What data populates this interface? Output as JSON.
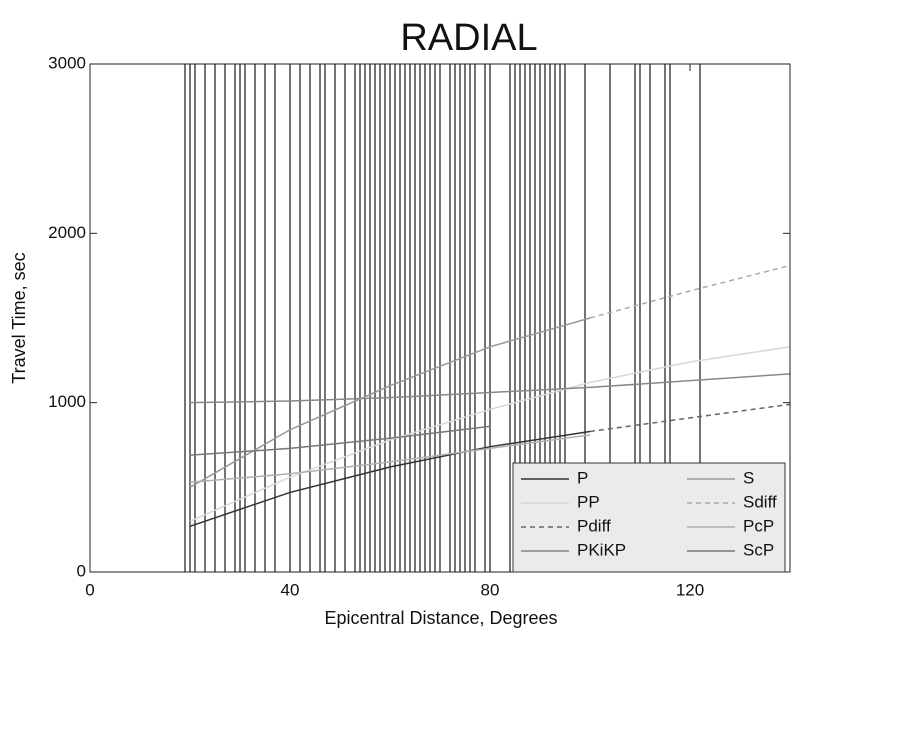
{
  "chart_data": {
    "type": "line",
    "title": "RADIAL",
    "x_label": "Epicentral Distance, Degrees",
    "y_label": "Travel Time, sec",
    "xlim": [
      0,
      140
    ],
    "ylim": [
      0,
      3000
    ],
    "xticks": [
      0,
      40,
      80,
      120
    ],
    "yticks": [
      0,
      1000,
      2000,
      3000
    ],
    "trace_color": "#2a2a2a",
    "trace_distances": [
      19,
      20,
      21,
      23,
      25,
      27,
      29,
      30,
      31,
      33,
      35,
      37,
      40,
      42,
      44,
      46,
      47,
      49,
      51,
      53,
      54,
      55,
      56,
      57,
      58,
      59,
      60,
      61,
      62,
      63,
      64,
      65,
      66,
      67,
      68,
      69,
      70,
      72,
      73,
      74,
      75,
      76,
      77,
      79,
      80,
      84,
      85,
      86,
      87,
      88,
      89,
      90,
      91,
      92,
      93,
      94,
      95,
      99,
      104,
      109,
      110,
      112,
      115,
      116,
      122
    ],
    "legend_background": "#ebebeb",
    "series": [
      {
        "name": "P",
        "color": "#333333",
        "dash": false,
        "x": [
          20,
          40,
          60,
          80,
          100
        ],
        "values": [
          270,
          470,
          620,
          740,
          830
        ]
      },
      {
        "name": "PP",
        "color": "#d8d8d8",
        "dash": false,
        "x": [
          20,
          40,
          60,
          80,
          100,
          120,
          140
        ],
        "values": [
          300,
          560,
          780,
          960,
          1120,
          1240,
          1330
        ]
      },
      {
        "name": "Pdiff",
        "color": "#666666",
        "dash": true,
        "x": [
          100,
          120,
          140
        ],
        "values": [
          830,
          910,
          990
        ]
      },
      {
        "name": "PKiKP",
        "color": "#888888",
        "dash": false,
        "x": [
          20,
          40,
          60,
          80,
          100,
          120,
          140
        ],
        "values": [
          1000,
          1010,
          1030,
          1060,
          1090,
          1130,
          1170
        ]
      },
      {
        "name": "S",
        "color": "#999999",
        "dash": false,
        "x": [
          20,
          40,
          60,
          80,
          100
        ],
        "values": [
          500,
          840,
          1100,
          1330,
          1500
        ]
      },
      {
        "name": "Sdiff",
        "color": "#aaaaaa",
        "dash": true,
        "x": [
          100,
          120,
          140
        ],
        "values": [
          1500,
          1660,
          1810
        ]
      },
      {
        "name": "PcP",
        "color": "#b0b0b0",
        "dash": false,
        "x": [
          20,
          40,
          60,
          80,
          100
        ],
        "values": [
          530,
          580,
          650,
          730,
          810
        ]
      },
      {
        "name": "ScP",
        "color": "#777777",
        "dash": false,
        "x": [
          20,
          40,
          60,
          80
        ],
        "values": [
          690,
          730,
          790,
          860
        ]
      }
    ]
  }
}
